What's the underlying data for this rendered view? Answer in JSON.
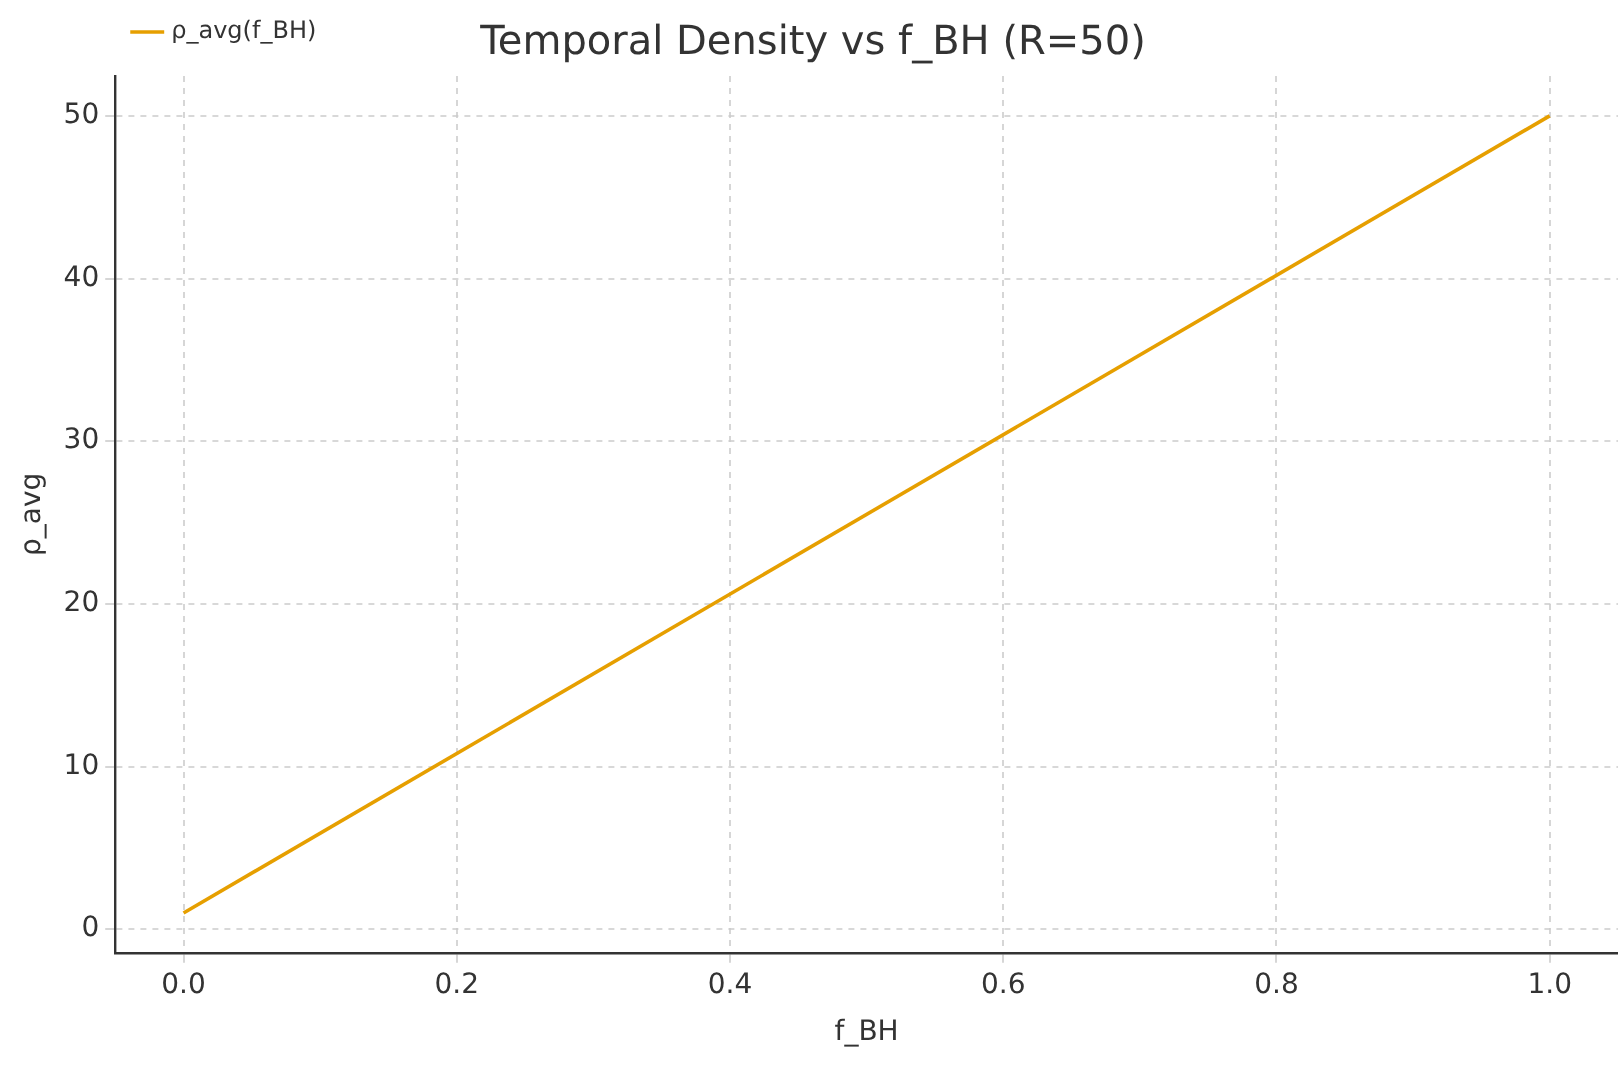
{
  "chart_data": {
    "type": "line",
    "title": "Temporal Density vs f_BH (R=50)",
    "xlabel": "f_BH",
    "ylabel": "ρ_avg",
    "x": [
      0,
      1
    ],
    "series": [
      {
        "name": "ρ_avg(f_BH)",
        "color": "#e69f00",
        "values": [
          1,
          50
        ]
      }
    ],
    "xlim": [
      -0.05,
      1.05
    ],
    "xticks": [
      {
        "value": 0,
        "label": "0.0"
      },
      0.2,
      0.4,
      0.6,
      0.8,
      {
        "value": 1,
        "label": "1.0"
      }
    ],
    "ylim": [
      -1.45,
      52.45
    ],
    "yticks": [
      0,
      10,
      20,
      30,
      40,
      50
    ],
    "grid": true,
    "legend": "top left",
    "line_style": "solid",
    "marker": "none"
  }
}
